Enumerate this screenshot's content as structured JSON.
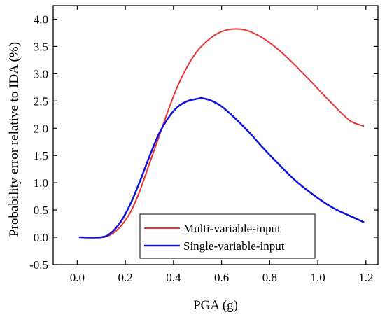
{
  "chart_data": {
    "type": "line",
    "xlabel": "PGA (g)",
    "ylabel": "Probability error relative to IDA (%)",
    "xlim": [
      -0.1,
      1.25
    ],
    "ylim": [
      -0.5,
      4.25
    ],
    "xticks": [
      "0.0",
      "0.2",
      "0.4",
      "0.6",
      "0.8",
      "1.0",
      "1.2"
    ],
    "yticks": [
      "-0.5",
      "0.0",
      "0.5",
      "1.0",
      "1.5",
      "2.0",
      "2.5",
      "3.0",
      "3.5",
      "4.0"
    ],
    "grid": false,
    "legend_position": "bottom-center",
    "series": [
      {
        "name": "Multi-variable-input",
        "color": "#ee3333",
        "x": [
          0.01,
          0.1,
          0.14,
          0.18,
          0.22,
          0.26,
          0.3,
          0.34,
          0.38,
          0.42,
          0.46,
          0.5,
          0.54,
          0.58,
          0.62,
          0.66,
          0.7,
          0.74,
          0.78,
          0.82,
          0.86,
          0.9,
          0.94,
          0.98,
          1.02,
          1.06,
          1.1,
          1.14,
          1.19
        ],
        "y": [
          0.0,
          0.0,
          0.05,
          0.2,
          0.45,
          0.85,
          1.35,
          1.85,
          2.35,
          2.8,
          3.15,
          3.42,
          3.6,
          3.73,
          3.8,
          3.82,
          3.8,
          3.73,
          3.63,
          3.5,
          3.35,
          3.18,
          3.0,
          2.82,
          2.63,
          2.45,
          2.27,
          2.12,
          2.04
        ]
      },
      {
        "name": "Single-variable-input",
        "color": "#1010dd",
        "x": [
          0.01,
          0.1,
          0.14,
          0.18,
          0.22,
          0.26,
          0.3,
          0.34,
          0.38,
          0.42,
          0.46,
          0.5,
          0.52,
          0.56,
          0.6,
          0.64,
          0.68,
          0.72,
          0.76,
          0.8,
          0.84,
          0.88,
          0.92,
          0.96,
          1.0,
          1.04,
          1.08,
          1.12,
          1.19
        ],
        "y": [
          0.0,
          0.0,
          0.08,
          0.28,
          0.6,
          1.02,
          1.48,
          1.9,
          2.2,
          2.4,
          2.5,
          2.54,
          2.55,
          2.5,
          2.4,
          2.25,
          2.08,
          1.9,
          1.7,
          1.51,
          1.33,
          1.15,
          0.99,
          0.85,
          0.72,
          0.6,
          0.5,
          0.42,
          0.28
        ]
      }
    ]
  }
}
